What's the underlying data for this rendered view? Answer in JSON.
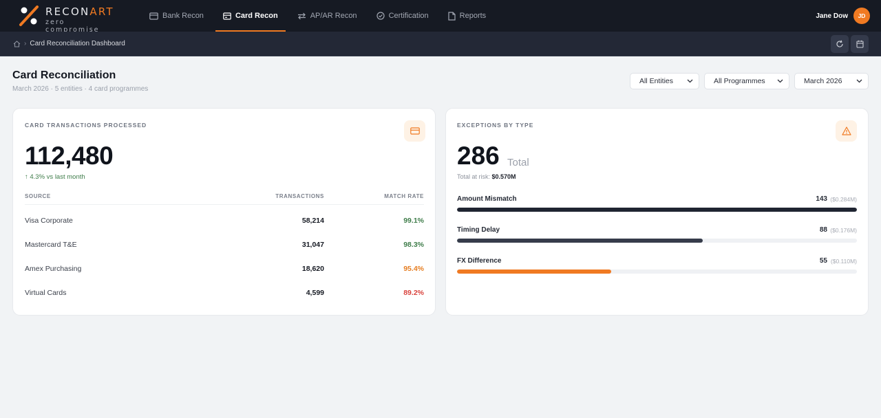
{
  "brand": {
    "name_a": "RECON",
    "name_b": "ART",
    "tagline": "zero compromise"
  },
  "nav": [
    {
      "label": "Bank Recon",
      "icon": "bank-icon",
      "active": false
    },
    {
      "label": "Card Recon",
      "icon": "card-icon",
      "active": true
    },
    {
      "label": "AP/AR Recon",
      "icon": "swap-icon",
      "active": false
    },
    {
      "label": "Certification",
      "icon": "check-circle-icon",
      "active": false
    },
    {
      "label": "Reports",
      "icon": "document-icon",
      "active": false
    }
  ],
  "user": {
    "name": "Jane Dow",
    "initials": "JD"
  },
  "breadcrumb": {
    "current": "Card Reconciliation Dashboard"
  },
  "header": {
    "title": "Card Reconciliation",
    "subtitle": "March 2026 · 5 entities · 4 card programmes"
  },
  "filters": {
    "entity": "All Entities",
    "programme": "All Programmes",
    "period": "March 2026"
  },
  "transactions": {
    "label": "CARD TRANSACTIONS PROCESSED",
    "total": "112,480",
    "trend": "↑ 4.3% vs last month",
    "columns": [
      "SOURCE",
      "TRANSACTIONS",
      "MATCH RATE"
    ],
    "rows": [
      {
        "source": "Visa Corporate",
        "transactions": "58,214",
        "match_rate": "99.1%",
        "status": "good"
      },
      {
        "source": "Mastercard T&E",
        "transactions": "31,047",
        "match_rate": "98.3%",
        "status": "good"
      },
      {
        "source": "Amex Purchasing",
        "transactions": "18,620",
        "match_rate": "95.4%",
        "status": "warn"
      },
      {
        "source": "Virtual Cards",
        "transactions": "4,599",
        "match_rate": "89.2%",
        "status": "bad"
      }
    ]
  },
  "exceptions": {
    "label": "EXCEPTIONS BY TYPE",
    "total": "286",
    "total_label": "Total",
    "risk_label": "Total at risk:",
    "risk_value": "$0.570M",
    "items": [
      {
        "label": "Amount Mismatch",
        "count": "143",
        "amount": "($0.284M)",
        "fraction": 1.0,
        "color": "#1f2431"
      },
      {
        "label": "Timing Delay",
        "count": "88",
        "amount": "($0.176M)",
        "fraction": 0.615,
        "color": "#363c4b"
      },
      {
        "label": "FX Difference",
        "count": "55",
        "amount": "($0.110M)",
        "fraction": 0.385,
        "color": "#f07a22"
      }
    ]
  },
  "colors": {
    "accent": "#f07a22",
    "good": "#3f7d4a",
    "warn": "#e67e22",
    "bad": "#d9433d"
  }
}
